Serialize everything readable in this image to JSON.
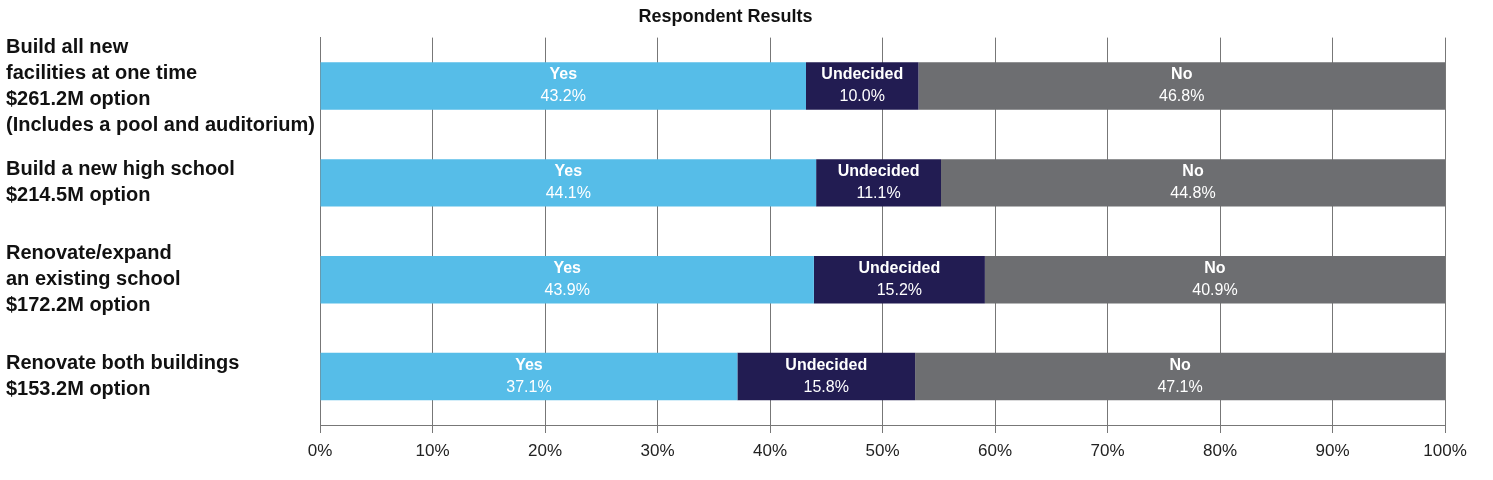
{
  "chart_data": {
    "type": "bar",
    "orientation": "horizontal",
    "stacked": true,
    "title": "Respondent Results",
    "categories": [
      "Build all new\nfacilities at one time\n$261.2M option\n(Includes a pool and auditorium)",
      "Build a new high school\n$214.5M option",
      "Renovate/expand\nan existing school\n$172.2M option",
      "Renovate both buildings\n$153.2M option"
    ],
    "series": [
      {
        "name": "Yes",
        "color": "#56bde8",
        "values": [
          43.2,
          44.1,
          43.9,
          37.1
        ],
        "value_labels": [
          "43.2%",
          "44.1%",
          "43.9%",
          "37.1%"
        ]
      },
      {
        "name": "Undecided",
        "color": "#221c52",
        "values": [
          10.0,
          11.1,
          15.2,
          15.8
        ],
        "value_labels": [
          "10.0%",
          "11.1%",
          "15.2%",
          "15.8%"
        ]
      },
      {
        "name": "No",
        "color": "#6d6e71",
        "values": [
          46.8,
          44.8,
          40.9,
          47.1
        ],
        "value_labels": [
          "46.8%",
          "44.8%",
          "40.9%",
          "47.1%"
        ]
      }
    ],
    "xlim": [
      0,
      100
    ],
    "xticks": [
      {
        "value": 0,
        "label": "0%"
      },
      {
        "value": 10,
        "label": "10%"
      },
      {
        "value": 20,
        "label": "20%"
      },
      {
        "value": 30,
        "label": "30%"
      },
      {
        "value": 40,
        "label": "40%"
      },
      {
        "value": 50,
        "label": "50%"
      },
      {
        "value": 60,
        "label": "60%"
      },
      {
        "value": 70,
        "label": "70%"
      },
      {
        "value": 80,
        "label": "80%"
      },
      {
        "value": 90,
        "label": "90%"
      },
      {
        "value": 100,
        "label": "100%"
      }
    ],
    "grid": "x",
    "legend": false
  }
}
